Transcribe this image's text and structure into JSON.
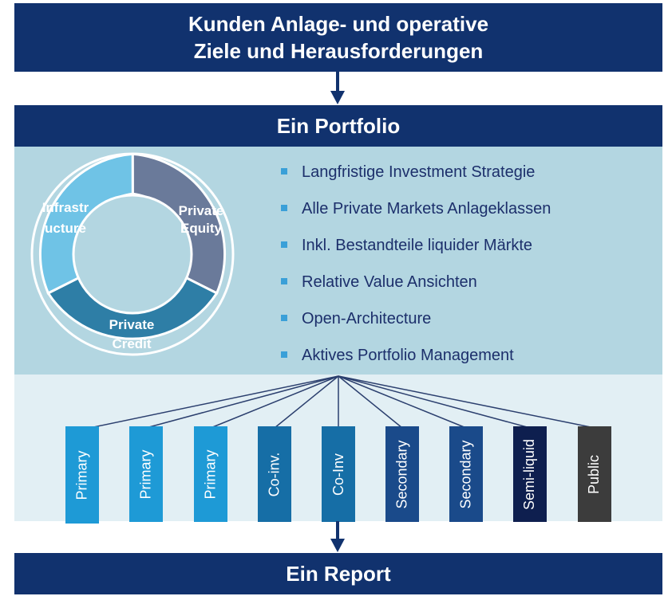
{
  "header": {
    "line1": "Kunden Anlage- und operative",
    "line2": "Ziele und Herausforderungen"
  },
  "portfolio": {
    "title": "Ein Portfolio"
  },
  "report": {
    "title": "Ein Report"
  },
  "donut": {
    "segments": [
      {
        "label_line1": "Private",
        "label_line2": "Equity",
        "color": "#6a7a9a"
      },
      {
        "label_line1": "Private",
        "label_line2": "Credit",
        "color": "#2e7ea6"
      },
      {
        "label_line1": "Infrastr",
        "label_line2": "ucture",
        "color": "#6fc3e6"
      }
    ]
  },
  "bullets": [
    "Langfristige Investment Strategie",
    "Alle Private Markets Anlageklassen",
    "Inkl. Bestandteile liquider Märkte",
    "Relative Value Ansichten",
    "Open-Architecture",
    "Aktives Portfolio Management"
  ],
  "buckets": [
    {
      "label": "Primary",
      "color": "#1e9ad6"
    },
    {
      "label": "Primary",
      "color": "#1e9ad6"
    },
    {
      "label": "Primary",
      "color": "#1e9ad6"
    },
    {
      "label": "Co-inv.",
      "color": "#166ea6"
    },
    {
      "label": "Co-Inv",
      "color": "#166ea6"
    },
    {
      "label": "Secondary",
      "color": "#1a4a8a"
    },
    {
      "label": "Secondary",
      "color": "#1a4a8a"
    },
    {
      "label": "Semi-liquid",
      "color": "#0e1f4f"
    },
    {
      "label": "Public",
      "color": "#3c3c3c"
    }
  ],
  "colors": {
    "navy": "#11326e",
    "light_panel": "#b3d6e1",
    "pale_panel": "#e2eff4",
    "bullet_marker": "#3aa0d8",
    "bullet_text": "#1c2f6b"
  }
}
